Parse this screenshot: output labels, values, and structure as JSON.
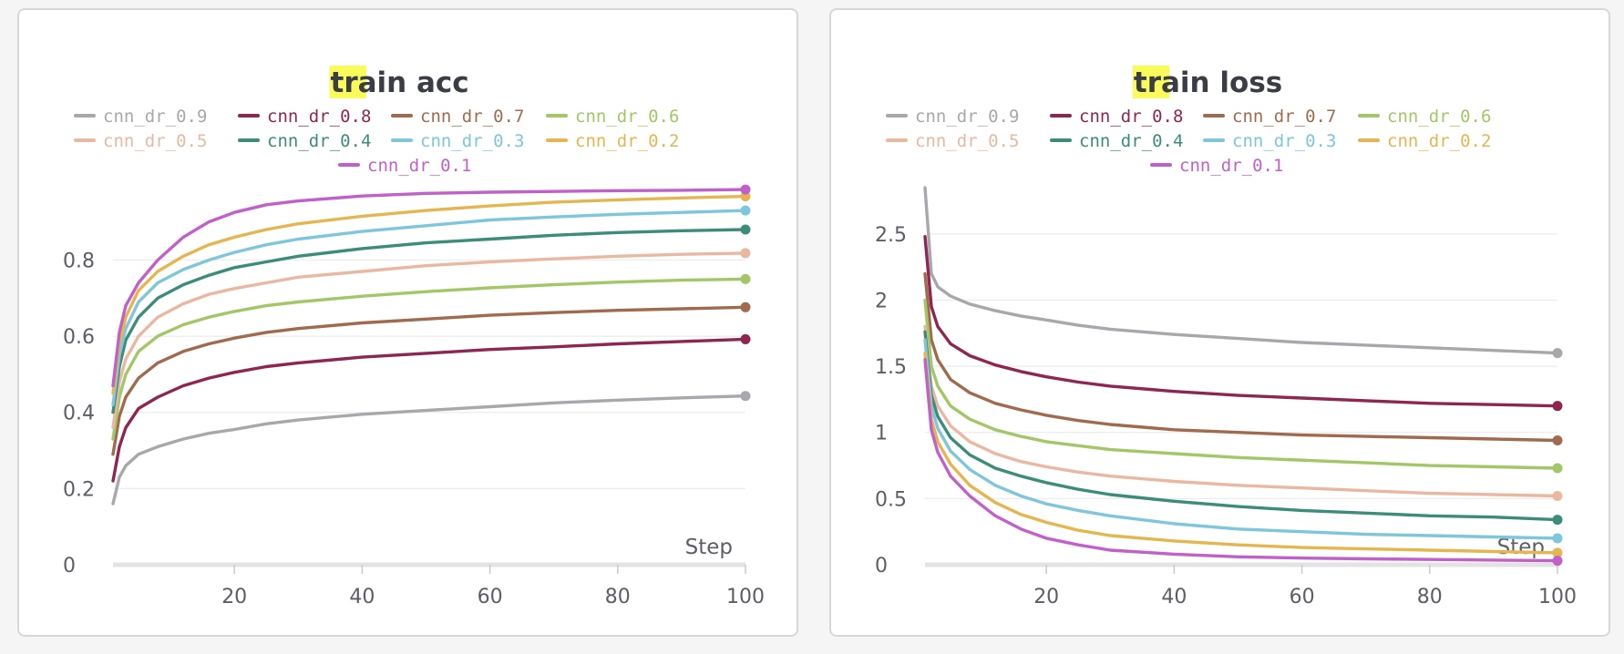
{
  "chart_data": [
    {
      "type": "line",
      "title": "train acc",
      "title_highlight": "tr",
      "title_rest": "ain acc",
      "xlabel": "Step",
      "ylabel": "",
      "xlim": [
        1,
        100
      ],
      "ylim": [
        0,
        0.99
      ],
      "xticks": [
        20,
        40,
        60,
        80,
        100
      ],
      "yticks": [
        0,
        0.2,
        0.4,
        0.6,
        0.8
      ],
      "grid": true,
      "legend_position": "top",
      "x": [
        1,
        2,
        3,
        5,
        8,
        12,
        16,
        20,
        25,
        30,
        40,
        50,
        60,
        70,
        80,
        90,
        100
      ],
      "series": [
        {
          "name": "cnn_dr_0.9",
          "color": "#a6a8ab",
          "values": [
            0.16,
            0.23,
            0.26,
            0.29,
            0.31,
            0.33,
            0.345,
            0.355,
            0.37,
            0.38,
            0.395,
            0.405,
            0.415,
            0.425,
            0.432,
            0.438,
            0.443
          ]
        },
        {
          "name": "cnn_dr_0.8",
          "color": "#8e2651",
          "values": [
            0.22,
            0.31,
            0.36,
            0.41,
            0.44,
            0.47,
            0.49,
            0.505,
            0.52,
            0.53,
            0.545,
            0.555,
            0.565,
            0.572,
            0.58,
            0.586,
            0.592
          ]
        },
        {
          "name": "cnn_dr_0.7",
          "color": "#a16a4e",
          "values": [
            0.29,
            0.39,
            0.44,
            0.49,
            0.53,
            0.56,
            0.58,
            0.595,
            0.61,
            0.62,
            0.635,
            0.645,
            0.655,
            0.662,
            0.668,
            0.672,
            0.676
          ]
        },
        {
          "name": "cnn_dr_0.6",
          "color": "#a2c766",
          "values": [
            0.33,
            0.44,
            0.5,
            0.56,
            0.6,
            0.63,
            0.65,
            0.665,
            0.68,
            0.69,
            0.705,
            0.717,
            0.727,
            0.735,
            0.742,
            0.747,
            0.75
          ]
        },
        {
          "name": "cnn_dr_0.5",
          "color": "#eab8a0",
          "values": [
            0.36,
            0.48,
            0.54,
            0.6,
            0.65,
            0.685,
            0.71,
            0.725,
            0.74,
            0.755,
            0.77,
            0.785,
            0.795,
            0.803,
            0.81,
            0.815,
            0.818
          ]
        },
        {
          "name": "cnn_dr_0.4",
          "color": "#3c8c7a",
          "values": [
            0.4,
            0.52,
            0.59,
            0.65,
            0.7,
            0.735,
            0.76,
            0.78,
            0.795,
            0.81,
            0.83,
            0.845,
            0.855,
            0.865,
            0.872,
            0.877,
            0.88
          ]
        },
        {
          "name": "cnn_dr_0.3",
          "color": "#7ec6db",
          "values": [
            0.42,
            0.55,
            0.62,
            0.69,
            0.74,
            0.775,
            0.8,
            0.82,
            0.84,
            0.855,
            0.875,
            0.89,
            0.905,
            0.913,
            0.92,
            0.925,
            0.93
          ]
        },
        {
          "name": "cnn_dr_0.2",
          "color": "#e5b650",
          "values": [
            0.45,
            0.58,
            0.65,
            0.72,
            0.77,
            0.81,
            0.84,
            0.86,
            0.88,
            0.895,
            0.915,
            0.93,
            0.942,
            0.952,
            0.958,
            0.963,
            0.967
          ]
        },
        {
          "name": "cnn_dr_0.1",
          "color": "#c15fcb",
          "values": [
            0.47,
            0.61,
            0.68,
            0.74,
            0.8,
            0.86,
            0.9,
            0.925,
            0.945,
            0.955,
            0.968,
            0.975,
            0.978,
            0.98,
            0.982,
            0.983,
            0.985
          ]
        }
      ]
    },
    {
      "type": "line",
      "title": "train loss",
      "title_highlight": "tr",
      "title_rest": "ain loss",
      "xlabel": "Step",
      "ylabel": "",
      "xlim": [
        1,
        100
      ],
      "ylim": [
        0,
        2.85
      ],
      "xticks": [
        20,
        40,
        60,
        80,
        100
      ],
      "yticks": [
        0,
        0.5,
        1,
        1.5,
        2,
        2.5
      ],
      "yticklabels": [
        "0",
        "0.5",
        "1",
        "1.5",
        "2",
        "2.5"
      ],
      "grid": true,
      "legend_position": "top",
      "x": [
        1,
        2,
        3,
        5,
        8,
        12,
        16,
        20,
        25,
        30,
        40,
        50,
        60,
        70,
        80,
        90,
        100
      ],
      "series": [
        {
          "name": "cnn_dr_0.9",
          "color": "#a6a8ab",
          "values": [
            2.85,
            2.2,
            2.1,
            2.03,
            1.97,
            1.92,
            1.88,
            1.85,
            1.81,
            1.78,
            1.74,
            1.71,
            1.68,
            1.66,
            1.64,
            1.62,
            1.6
          ]
        },
        {
          "name": "cnn_dr_0.8",
          "color": "#8e2651",
          "values": [
            2.48,
            1.95,
            1.8,
            1.67,
            1.58,
            1.51,
            1.46,
            1.42,
            1.38,
            1.35,
            1.31,
            1.28,
            1.26,
            1.24,
            1.22,
            1.21,
            1.2
          ]
        },
        {
          "name": "cnn_dr_0.7",
          "color": "#a16a4e",
          "values": [
            2.2,
            1.7,
            1.55,
            1.4,
            1.3,
            1.22,
            1.17,
            1.13,
            1.09,
            1.06,
            1.02,
            1.0,
            0.98,
            0.97,
            0.96,
            0.95,
            0.94
          ]
        },
        {
          "name": "cnn_dr_0.6",
          "color": "#a2c766",
          "values": [
            2.0,
            1.5,
            1.35,
            1.2,
            1.1,
            1.02,
            0.97,
            0.93,
            0.9,
            0.87,
            0.84,
            0.81,
            0.79,
            0.77,
            0.75,
            0.74,
            0.73
          ]
        },
        {
          "name": "cnn_dr_0.5",
          "color": "#eab8a0",
          "values": [
            1.8,
            1.35,
            1.2,
            1.05,
            0.93,
            0.84,
            0.78,
            0.74,
            0.7,
            0.67,
            0.63,
            0.6,
            0.58,
            0.56,
            0.54,
            0.53,
            0.52
          ]
        },
        {
          "name": "cnn_dr_0.4",
          "color": "#3c8c7a",
          "values": [
            1.76,
            1.28,
            1.12,
            0.96,
            0.83,
            0.73,
            0.67,
            0.62,
            0.57,
            0.53,
            0.48,
            0.44,
            0.41,
            0.39,
            0.37,
            0.36,
            0.34
          ]
        },
        {
          "name": "cnn_dr_0.3",
          "color": "#7ec6db",
          "values": [
            1.7,
            1.2,
            1.03,
            0.86,
            0.72,
            0.6,
            0.52,
            0.46,
            0.41,
            0.37,
            0.31,
            0.27,
            0.25,
            0.23,
            0.22,
            0.21,
            0.2
          ]
        },
        {
          "name": "cnn_dr_0.2",
          "color": "#e5b650",
          "values": [
            1.6,
            1.1,
            0.93,
            0.76,
            0.6,
            0.47,
            0.38,
            0.32,
            0.26,
            0.22,
            0.18,
            0.15,
            0.13,
            0.12,
            0.11,
            0.1,
            0.09
          ]
        },
        {
          "name": "cnn_dr_0.1",
          "color": "#c15fcb",
          "values": [
            1.55,
            1.02,
            0.85,
            0.67,
            0.52,
            0.37,
            0.27,
            0.2,
            0.15,
            0.11,
            0.08,
            0.06,
            0.05,
            0.045,
            0.04,
            0.035,
            0.03
          ]
        }
      ]
    }
  ]
}
